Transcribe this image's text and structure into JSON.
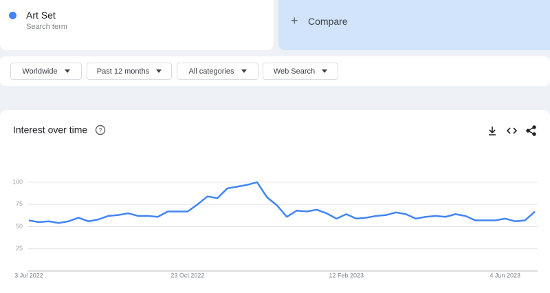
{
  "search_term": {
    "name": "Art Set",
    "subtitle": "Search term"
  },
  "compare": "Compare",
  "filters": [
    "Worldwide",
    "Past 12 months",
    "All categories",
    "Web Search"
  ],
  "chart_data": {
    "type": "line",
    "title": "Interest over time",
    "categories": [
      "3 Jul 2022",
      null,
      null,
      null,
      null,
      null,
      null,
      null,
      null,
      null,
      null,
      null,
      null,
      null,
      null,
      null,
      "23 Oct 2022",
      null,
      null,
      null,
      null,
      null,
      null,
      null,
      null,
      null,
      null,
      null,
      null,
      null,
      null,
      null,
      "12 Feb 2023",
      null,
      null,
      null,
      null,
      null,
      null,
      null,
      null,
      null,
      null,
      null,
      null,
      null,
      null,
      null,
      "4 Jun 2023",
      null,
      null,
      null
    ],
    "values": [
      57,
      55,
      56,
      54,
      56,
      60,
      56,
      58,
      62,
      63,
      65,
      62,
      62,
      61,
      67,
      67,
      67,
      75,
      84,
      82,
      93,
      95,
      97,
      100,
      83,
      74,
      61,
      68,
      67,
      69,
      65,
      59,
      64,
      59,
      60,
      62,
      63,
      66,
      64,
      59,
      61,
      62,
      61,
      64,
      62,
      57,
      57,
      57,
      59,
      56,
      57,
      67
    ],
    "color": "#4285f4",
    "ylim": [
      0,
      110
    ],
    "yticks": [
      25,
      50,
      75,
      100
    ],
    "grid": true
  }
}
